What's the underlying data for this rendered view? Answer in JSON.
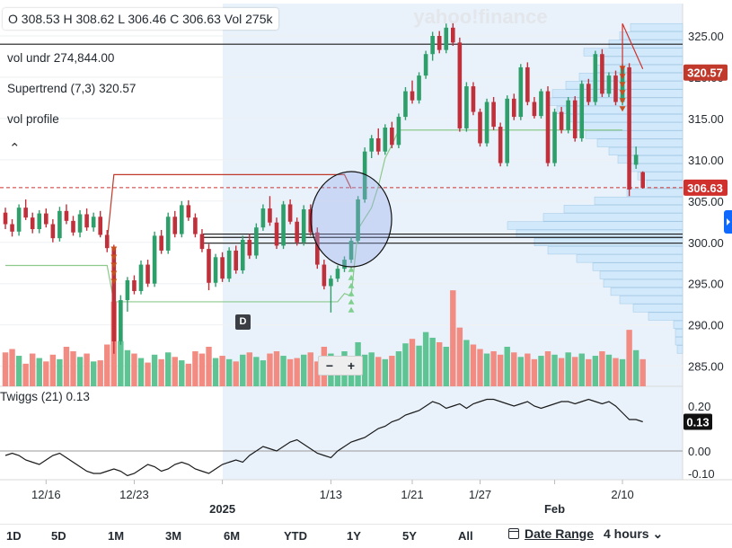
{
  "header": {
    "ohlc_text": "O 308.53  H 308.62  L 306.46  C 306.63  Vol 275k"
  },
  "watermark": "yahoo!finance",
  "indicators": [
    {
      "name": "vol undr",
      "value": "274,844.00"
    },
    {
      "name": "Supertrend (7,3)",
      "value": "320.57"
    },
    {
      "name": "vol profile",
      "value": ""
    }
  ],
  "chart_data": {
    "type": "candlestick",
    "price_axis": {
      "ticks": [
        "325.00",
        "320.00",
        "315.00",
        "310.00",
        "305.00",
        "300.00",
        "295.00",
        "290.00",
        "285.00"
      ],
      "ylim": [
        284,
        327
      ]
    },
    "x_labels": [
      "12/16",
      "12/23",
      "2025",
      "1/13",
      "1/21",
      "1/27",
      "Feb",
      "2/10"
    ],
    "price_labels": [
      {
        "text": "320.57",
        "color": "#c0392b"
      },
      {
        "text": "306.63",
        "color": "#d0312d"
      }
    ],
    "horizontal_lines": [
      324.0,
      301.0,
      300.6,
      299.9
    ],
    "last_price": 306.63,
    "candles": [
      [
        303.6,
        304.2,
        301.6,
        302.2
      ],
      [
        302.2,
        302.8,
        300.7,
        301.3
      ],
      [
        301.3,
        304.6,
        300.8,
        304.2
      ],
      [
        304.2,
        305.2,
        302.7,
        303.0
      ],
      [
        303.0,
        303.6,
        301.1,
        301.6
      ],
      [
        301.6,
        303.9,
        301.1,
        303.5
      ],
      [
        303.5,
        304.1,
        301.8,
        302.2
      ],
      [
        302.2,
        302.8,
        300.0,
        300.5
      ],
      [
        300.5,
        304.3,
        300.1,
        303.8
      ],
      [
        303.8,
        304.6,
        302.2,
        302.6
      ],
      [
        302.6,
        303.2,
        300.8,
        301.2
      ],
      [
        301.2,
        303.9,
        300.6,
        303.4
      ],
      [
        303.4,
        304.1,
        301.4,
        301.8
      ],
      [
        301.8,
        303.6,
        301.3,
        303.1
      ],
      [
        303.1,
        303.8,
        300.6,
        300.9
      ],
      [
        300.9,
        301.5,
        298.8,
        299.3
      ],
      [
        299.3,
        299.7,
        286.5,
        288.0
      ],
      [
        288.0,
        293.6,
        287.6,
        293.0
      ],
      [
        293.0,
        295.8,
        291.6,
        295.4
      ],
      [
        295.4,
        296.0,
        293.7,
        294.1
      ],
      [
        294.1,
        297.8,
        293.7,
        297.3
      ],
      [
        297.3,
        297.9,
        294.6,
        295.0
      ],
      [
        295.0,
        301.3,
        294.6,
        300.8
      ],
      [
        300.8,
        301.5,
        298.6,
        299.0
      ],
      [
        299.0,
        303.6,
        298.6,
        303.1
      ],
      [
        303.1,
        303.8,
        300.6,
        301.0
      ],
      [
        301.0,
        305.0,
        300.6,
        304.5
      ],
      [
        304.5,
        305.1,
        302.6,
        303.0
      ],
      [
        303.0,
        303.5,
        300.6,
        301.0
      ],
      [
        301.0,
        301.6,
        298.8,
        299.2
      ],
      [
        299.2,
        299.8,
        294.2,
        295.1
      ],
      [
        295.1,
        298.6,
        294.6,
        298.2
      ],
      [
        298.2,
        298.8,
        295.2,
        295.6
      ],
      [
        295.6,
        299.4,
        295.2,
        299.0
      ],
      [
        299.0,
        299.6,
        296.2,
        296.6
      ],
      [
        296.6,
        300.8,
        296.2,
        300.3
      ],
      [
        300.3,
        301.0,
        298.0,
        298.4
      ],
      [
        298.4,
        302.3,
        298.0,
        301.8
      ],
      [
        301.8,
        304.6,
        301.4,
        304.1
      ],
      [
        304.1,
        305.6,
        302.0,
        302.4
      ],
      [
        302.4,
        303.0,
        299.2,
        299.6
      ],
      [
        299.6,
        305.0,
        299.2,
        304.6
      ],
      [
        304.6,
        305.2,
        302.2,
        302.5
      ],
      [
        302.5,
        303.0,
        299.6,
        300.0
      ],
      [
        300.0,
        304.5,
        299.6,
        304.0
      ],
      [
        304.0,
        304.6,
        300.8,
        301.2
      ],
      [
        301.2,
        301.8,
        296.8,
        297.3
      ],
      [
        297.3,
        297.9,
        294.3,
        294.7
      ],
      [
        294.7,
        296.0,
        291.5,
        295.6
      ],
      [
        295.6,
        297.2,
        295.2,
        296.8
      ],
      [
        296.8,
        298.3,
        296.4,
        297.9
      ],
      [
        297.9,
        300.6,
        297.5,
        300.2
      ],
      [
        300.2,
        305.6,
        299.8,
        305.2
      ],
      [
        305.2,
        311.5,
        304.8,
        311.0
      ],
      [
        311.0,
        313.0,
        310.2,
        312.6
      ],
      [
        312.6,
        313.8,
        310.6,
        311.0
      ],
      [
        311.0,
        314.3,
        310.6,
        313.9
      ],
      [
        313.9,
        314.6,
        311.4,
        311.8
      ],
      [
        311.8,
        315.6,
        311.4,
        315.2
      ],
      [
        315.2,
        318.8,
        314.8,
        318.3
      ],
      [
        318.3,
        319.6,
        316.8,
        317.2
      ],
      [
        317.2,
        320.6,
        316.8,
        320.2
      ],
      [
        320.2,
        323.2,
        319.8,
        322.8
      ],
      [
        322.8,
        325.5,
        322.0,
        325.0
      ],
      [
        325.0,
        325.6,
        322.9,
        323.3
      ],
      [
        323.3,
        326.5,
        322.9,
        326.0
      ],
      [
        326.0,
        326.6,
        323.8,
        324.2
      ],
      [
        324.2,
        324.8,
        313.4,
        313.8
      ],
      [
        313.8,
        319.4,
        313.4,
        318.9
      ],
      [
        318.9,
        319.4,
        315.4,
        315.8
      ],
      [
        315.8,
        316.2,
        311.6,
        312.0
      ],
      [
        312.0,
        317.4,
        311.6,
        317.0
      ],
      [
        317.0,
        317.6,
        313.6,
        314.0
      ],
      [
        314.0,
        314.5,
        309.2,
        309.6
      ],
      [
        309.6,
        317.8,
        309.2,
        317.4
      ],
      [
        317.4,
        318.0,
        314.8,
        315.2
      ],
      [
        315.2,
        321.6,
        314.8,
        321.2
      ],
      [
        321.2,
        321.8,
        316.6,
        317.0
      ],
      [
        317.0,
        317.6,
        315.0,
        315.3
      ],
      [
        315.3,
        318.6,
        315.0,
        318.3
      ],
      [
        318.3,
        318.9,
        309.2,
        309.6
      ],
      [
        309.6,
        316.2,
        309.2,
        315.8
      ],
      [
        315.8,
        316.4,
        313.2,
        313.6
      ],
      [
        313.6,
        317.6,
        313.2,
        317.2
      ],
      [
        317.2,
        317.7,
        312.2,
        312.6
      ],
      [
        312.6,
        319.6,
        312.2,
        319.2
      ],
      [
        319.2,
        319.8,
        316.6,
        317.0
      ],
      [
        317.0,
        323.2,
        316.6,
        322.8
      ],
      [
        322.8,
        323.4,
        317.6,
        318.0
      ],
      [
        318.0,
        320.6,
        317.6,
        320.2
      ],
      [
        320.2,
        320.8,
        316.6,
        317.0
      ],
      [
        317.0,
        321.6,
        316.6,
        321.2
      ],
      [
        321.2,
        321.7,
        305.6,
        306.4
      ],
      [
        309.4,
        311.6,
        308.9,
        310.6
      ],
      [
        308.5,
        308.6,
        306.5,
        306.6
      ]
    ],
    "volumes": [
      60,
      66,
      54,
      40,
      58,
      50,
      44,
      56,
      48,
      70,
      62,
      52,
      58,
      44,
      46,
      74,
      150,
      80,
      64,
      58,
      50,
      42,
      56,
      48,
      60,
      52,
      46,
      40,
      62,
      58,
      70,
      50,
      54,
      48,
      44,
      56,
      60,
      52,
      46,
      58,
      62,
      54,
      48,
      50,
      56,
      60,
      44,
      70,
      58,
      52,
      62,
      46,
      78,
      56,
      60,
      52,
      48,
      54,
      62,
      76,
      84,
      72,
      96,
      86,
      78,
      70,
      170,
      104,
      82,
      74,
      66,
      58,
      62,
      56,
      70,
      60,
      52,
      58,
      48,
      54,
      62,
      56,
      50,
      60,
      52,
      58,
      48,
      54,
      62,
      56,
      50,
      48,
      100,
      64,
      48
    ],
    "volume_profile": [
      [
        326.0,
        58
      ],
      [
        325.0,
        70
      ],
      [
        324.0,
        82
      ],
      [
        323.0,
        110
      ],
      [
        322.0,
        90
      ],
      [
        321.0,
        98
      ],
      [
        320.0,
        115
      ],
      [
        319.0,
        130
      ],
      [
        318.0,
        145
      ],
      [
        317.0,
        150
      ],
      [
        316.0,
        140
      ],
      [
        315.0,
        128
      ],
      [
        314.0,
        122
      ],
      [
        313.0,
        108
      ],
      [
        312.0,
        95
      ],
      [
        311.0,
        82
      ],
      [
        310.0,
        72
      ],
      [
        309.0,
        60
      ],
      [
        308.0,
        50
      ],
      [
        307.0,
        40
      ],
      [
        306.0,
        62
      ],
      [
        305.0,
        98
      ],
      [
        304.0,
        132
      ],
      [
        303.0,
        155
      ],
      [
        302.0,
        195
      ],
      [
        301.0,
        185
      ],
      [
        300.0,
        165
      ],
      [
        299.0,
        150
      ],
      [
        298.0,
        118
      ],
      [
        297.0,
        100
      ],
      [
        296.0,
        92
      ],
      [
        295.0,
        88
      ],
      [
        294.0,
        80
      ],
      [
        293.0,
        70
      ],
      [
        292.0,
        55
      ],
      [
        291.0,
        38
      ],
      [
        290.0,
        10
      ],
      [
        289.0,
        8
      ],
      [
        288.0,
        8
      ],
      [
        287.0,
        6
      ]
    ],
    "supertrend_upper": [
      [
        15,
        300
      ],
      [
        16,
        308.2
      ],
      [
        50,
        308.2
      ],
      [
        51,
        306.5
      ]
    ],
    "supertrend_lower": [
      [
        0,
        297.2
      ],
      [
        15,
        297.2
      ],
      [
        16,
        292.8
      ],
      [
        49,
        292.8
      ],
      [
        50,
        293.8
      ],
      [
        51,
        293.5
      ],
      [
        52,
        301.6
      ],
      [
        54,
        304.2
      ],
      [
        55,
        306.8
      ],
      [
        56,
        310.2
      ],
      [
        57,
        311.8
      ],
      [
        58,
        313.6
      ],
      [
        91,
        313.6
      ]
    ],
    "signal_markers": [
      {
        "index": 16,
        "type": "down",
        "count": 5
      },
      {
        "index": 51,
        "type": "up",
        "count": 6
      },
      {
        "index": 91,
        "type": "down",
        "count": 6
      }
    ],
    "circle_annotation": {
      "center_index": 51,
      "price": 302.8
    },
    "twiggs": {
      "name": "Twiggs (21)",
      "value": "0.13",
      "ticks": [
        "0.20",
        "0.00",
        "-0.10"
      ],
      "ylim": [
        -0.14,
        0.27
      ],
      "values": [
        -0.02,
        -0.01,
        -0.02,
        -0.04,
        -0.05,
        -0.06,
        -0.04,
        -0.02,
        -0.01,
        -0.03,
        -0.05,
        -0.07,
        -0.09,
        -0.1,
        -0.1,
        -0.09,
        -0.08,
        -0.09,
        -0.11,
        -0.1,
        -0.08,
        -0.06,
        -0.07,
        -0.09,
        -0.08,
        -0.06,
        -0.05,
        -0.06,
        -0.08,
        -0.09,
        -0.1,
        -0.08,
        -0.06,
        -0.05,
        -0.04,
        -0.05,
        -0.02,
        0.0,
        0.02,
        0.01,
        0.0,
        0.02,
        0.04,
        0.05,
        0.03,
        0.01,
        -0.01,
        -0.02,
        -0.03,
        0.0,
        0.02,
        0.04,
        0.05,
        0.06,
        0.08,
        0.1,
        0.11,
        0.13,
        0.14,
        0.16,
        0.17,
        0.18,
        0.2,
        0.22,
        0.21,
        0.19,
        0.2,
        0.21,
        0.19,
        0.21,
        0.22,
        0.23,
        0.23,
        0.22,
        0.21,
        0.2,
        0.21,
        0.22,
        0.2,
        0.19,
        0.2,
        0.21,
        0.22,
        0.22,
        0.21,
        0.22,
        0.23,
        0.22,
        0.21,
        0.22,
        0.2,
        0.17,
        0.14,
        0.14,
        0.13
      ]
    }
  },
  "toolbar": {
    "ranges": [
      "1D",
      "5D",
      "1M",
      "3M",
      "6M",
      "YTD",
      "1Y",
      "5Y",
      "All"
    ],
    "date_range_label": "Date Range",
    "interval_label": "4 hours",
    "d_badge": "D",
    "zoom_minus": "−",
    "zoom_plus": "+"
  },
  "colors": {
    "up": "#2e9e6a",
    "down": "#c0303a",
    "vol_up": "#5ec493",
    "vol_down": "#f28b82",
    "profile": "#d2e9fb",
    "shade": "#e9f2fb",
    "supertrend_upper": "#c0392b",
    "supertrend_lower": "#8cc98c"
  }
}
